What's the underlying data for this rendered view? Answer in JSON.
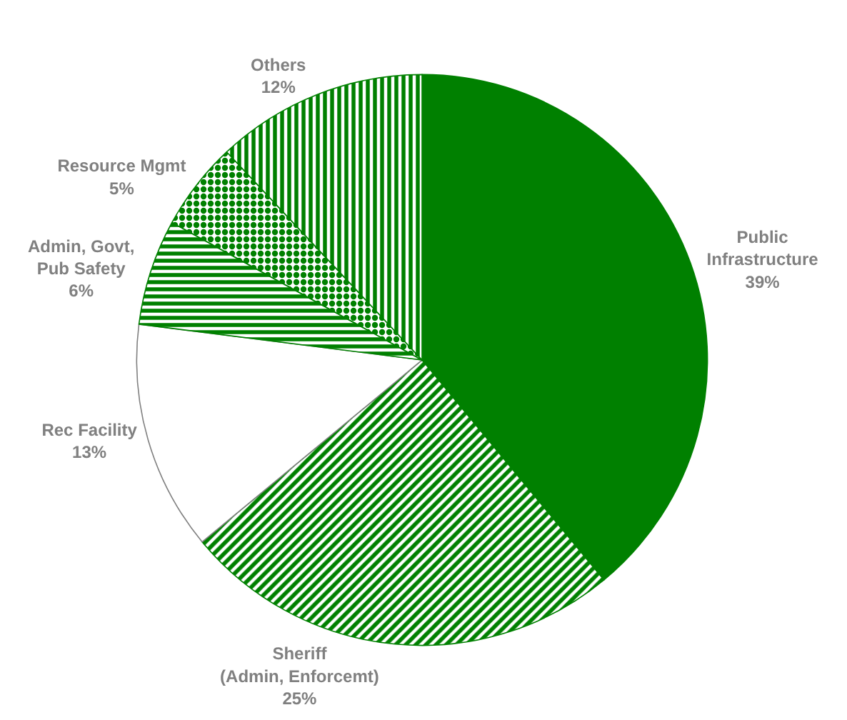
{
  "chart_data": {
    "type": "pie",
    "categories": [
      "Public Infrastructure",
      "Sheriff (Admin, Enforcemt)",
      "Rec Facility",
      "Admin, Govt, Pub Safety",
      "Resource Mgmt",
      "Others"
    ],
    "values": [
      39,
      25,
      13,
      6,
      5,
      12
    ],
    "value_labels": [
      "39%",
      "25%",
      "13%",
      "6%",
      "5%",
      "12%"
    ],
    "colors": [
      "#008000",
      "#008000",
      "#ffffff",
      "#008000",
      "#008000",
      "#008000"
    ],
    "legend": false
  }
}
